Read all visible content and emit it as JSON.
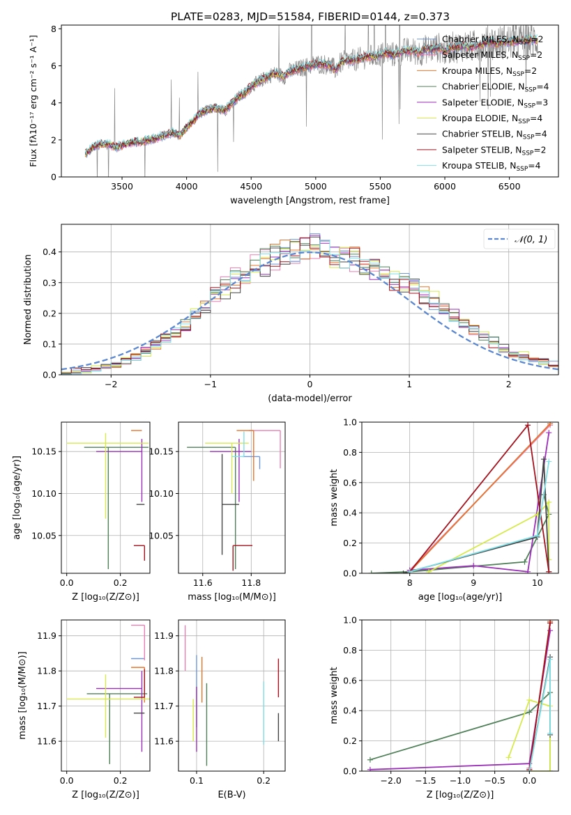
{
  "figure_title": "PLATE=0283, MJD=51584, FIBERID=0144, z=0.373",
  "models": [
    {
      "name": "Chabrier MILES",
      "nssp": "2",
      "color": "#6e95d6"
    },
    {
      "name": "Salpeter MILES",
      "nssp": "2",
      "color": "#e87fb3"
    },
    {
      "name": "Kroupa MILES",
      "nssp": "2",
      "color": "#e8742b"
    },
    {
      "name": "Chabrier ELODIE",
      "nssp": "4",
      "color": "#4f8058"
    },
    {
      "name": "Salpeter ELODIE",
      "nssp": "3",
      "color": "#9a2db7"
    },
    {
      "name": "Kroupa ELODIE",
      "nssp": "4",
      "color": "#d6ea4c"
    },
    {
      "name": "Chabrier STELIB",
      "nssp": "4",
      "color": "#444444"
    },
    {
      "name": "Salpeter STELIB",
      "nssp": "2",
      "color": "#a3121c"
    },
    {
      "name": "Kroupa STELIB",
      "nssp": "4",
      "color": "#7fdfe6"
    }
  ],
  "chart_data": [
    {
      "id": "spectrum",
      "type": "line",
      "xlabel": "wavelength [Angstrom, rest frame]",
      "ylabel": "Flux [fλ10⁻¹⁷ erg cm⁻² s⁻¹ A⁻¹]",
      "xlim": [
        3030,
        6880
      ],
      "ylim": [
        0,
        8.2
      ],
      "xticks": [
        3500,
        4000,
        4500,
        5000,
        5500,
        6000,
        6500
      ],
      "yticks": [
        0,
        2,
        4,
        6,
        8
      ],
      "continuum": {
        "x": [
          3215,
          3240,
          3300,
          3350,
          3400,
          3450,
          3500,
          3550,
          3600,
          3650,
          3700,
          3750,
          3800,
          3850,
          3900,
          3950,
          4000,
          4050,
          4100,
          4150,
          4200,
          4250,
          4300,
          4350,
          4400,
          4450,
          4500,
          4550,
          4600,
          4650,
          4700,
          4750,
          4800,
          4850,
          4900,
          4950,
          5000,
          5050,
          5100,
          5150,
          5200,
          5250,
          5300,
          5350,
          5400,
          5450,
          5500,
          5550,
          5600,
          5650,
          5700,
          5750,
          5800,
          5850,
          5900,
          5950,
          6000,
          6050,
          6100,
          6150,
          6200,
          6250,
          6300,
          6350,
          6400,
          6450,
          6500,
          6550,
          6600,
          6650,
          6700
        ],
        "y": [
          1.2,
          1.4,
          1.7,
          1.8,
          1.75,
          1.6,
          1.7,
          1.8,
          1.9,
          1.9,
          2.0,
          2.05,
          2.2,
          2.3,
          2.4,
          2.2,
          2.7,
          3.0,
          3.4,
          3.6,
          3.7,
          3.7,
          3.6,
          4.0,
          4.3,
          4.5,
          4.9,
          5.1,
          5.3,
          5.5,
          5.6,
          5.4,
          5.7,
          5.8,
          5.9,
          6.0,
          6.1,
          6.1,
          6.05,
          5.8,
          6.2,
          6.3,
          6.3,
          6.4,
          6.5,
          6.5,
          6.6,
          6.7,
          6.6,
          6.7,
          6.8,
          6.8,
          6.7,
          6.9,
          6.9,
          7.0,
          6.8,
          7.0,
          7.0,
          7.1,
          7.0,
          7.1,
          7.2,
          7.3,
          7.2,
          7.3,
          7.3,
          7.3,
          7.4,
          7.4,
          7.4
        ]
      }
    },
    {
      "id": "residuals",
      "type": "histogram",
      "xlabel": "(data-model)/error",
      "ylabel": "Normed distribution",
      "xlim": [
        -2.5,
        2.5
      ],
      "ylim": [
        0,
        0.49
      ],
      "xticks": [
        -2,
        -1,
        0,
        1,
        2
      ],
      "yticks": [
        0.0,
        0.1,
        0.2,
        0.3,
        0.4
      ],
      "bin_edges": [
        -2.5,
        -2.4,
        -2.3,
        -2.2,
        -2.1,
        -2.0,
        -1.9,
        -1.8,
        -1.7,
        -1.6,
        -1.5,
        -1.4,
        -1.3,
        -1.2,
        -1.1,
        -1.0,
        -0.9,
        -0.8,
        -0.7,
        -0.6,
        -0.5,
        -0.4,
        -0.3,
        -0.2,
        -0.1,
        0.0,
        0.1,
        0.2,
        0.3,
        0.4,
        0.5,
        0.6,
        0.7,
        0.8,
        0.9,
        1.0,
        1.1,
        1.2,
        1.3,
        1.4,
        1.5,
        1.6,
        1.7,
        1.8,
        1.9,
        2.0,
        2.1,
        2.2,
        2.3,
        2.4,
        2.5
      ],
      "envelope": [
        0.01,
        0.012,
        0.015,
        0.02,
        0.025,
        0.035,
        0.045,
        0.06,
        0.075,
        0.095,
        0.115,
        0.14,
        0.165,
        0.195,
        0.225,
        0.255,
        0.285,
        0.31,
        0.335,
        0.355,
        0.37,
        0.385,
        0.395,
        0.405,
        0.41,
        0.412,
        0.41,
        0.4,
        0.39,
        0.375,
        0.36,
        0.345,
        0.33,
        0.315,
        0.3,
        0.28,
        0.26,
        0.24,
        0.215,
        0.19,
        0.165,
        0.145,
        0.125,
        0.105,
        0.085,
        0.07,
        0.06,
        0.05,
        0.042,
        0.035
      ],
      "gaussian_label": "𝒩(0, 1)",
      "gaussian_color": "#5b87d0"
    },
    {
      "id": "age_vs_Z",
      "type": "errorbar",
      "xlabel": "Z [log₁₀(Z/Z⊙)]",
      "ylabel": "age  [log₁₀(age/yr)]",
      "xlim": [
        -0.02,
        0.31
      ],
      "ylim": [
        10.005,
        10.185
      ],
      "xticks": [
        0.0,
        0.2
      ],
      "yticks": [
        10.05,
        10.1,
        10.15
      ],
      "points": [
        {
          "m": 0,
          "x": 0.29,
          "xerr": [
            0.0,
            0.0
          ],
          "y": 10.144,
          "yerr": [
            0.0,
            0.0
          ]
        },
        {
          "m": 1,
          "x": 0.28,
          "xerr": [
            0.0,
            0.0
          ],
          "y": 10.175,
          "yerr": [
            0.0,
            0.0
          ]
        },
        {
          "m": 2,
          "x": 0.28,
          "xerr": [
            0.04,
            0.0
          ],
          "y": 10.175,
          "yerr": [
            0.0,
            0.0
          ]
        },
        {
          "m": 3,
          "x": 0.155,
          "xerr": [
            0.09,
            0.15
          ],
          "y": 10.155,
          "yerr": [
            0.145,
            0.0
          ]
        },
        {
          "m": 4,
          "x": 0.28,
          "xerr": [
            0.17,
            0.0
          ],
          "y": 10.15,
          "yerr": [
            0.06,
            0.015
          ]
        },
        {
          "m": 5,
          "x": 0.145,
          "xerr": [
            0.145,
            0.16
          ],
          "y": 10.16,
          "yerr": [
            0.09,
            0.012
          ]
        },
        {
          "m": 6,
          "x": 0.29,
          "xerr": [
            0.03,
            0.0
          ],
          "y": 10.087,
          "yerr": [
            0.0,
            0.0
          ]
        },
        {
          "m": 7,
          "x": 0.29,
          "xerr": [
            0.04,
            0.0
          ],
          "y": 10.038,
          "yerr": [
            0.018,
            0.0
          ]
        },
        {
          "m": 8,
          "x": 0.29,
          "xerr": [
            0.0,
            0.0
          ],
          "y": 10.144,
          "yerr": [
            0.0,
            0.0
          ]
        }
      ]
    },
    {
      "id": "age_vs_mass",
      "type": "errorbar",
      "xlabel": "mass [log₁₀(M/M⊙)]",
      "ylabel": "",
      "xlim": [
        11.5,
        11.94
      ],
      "ylim": [
        10.005,
        10.185
      ],
      "xticks": [
        11.6,
        11.8
      ],
      "yticks": [
        10.05,
        10.1,
        10.15
      ],
      "points": [
        {
          "m": 0,
          "x": 11.835,
          "xerr": [
            0.07,
            0.0
          ],
          "y": 10.144,
          "yerr": [
            0.015,
            0.0
          ]
        },
        {
          "m": 1,
          "x": 11.92,
          "xerr": [
            0.13,
            0.0
          ],
          "y": 10.175,
          "yerr": [
            0.045,
            0.0
          ]
        },
        {
          "m": 2,
          "x": 11.81,
          "xerr": [
            0.07,
            0.0
          ],
          "y": 10.175,
          "yerr": [
            0.06,
            0.0
          ]
        },
        {
          "m": 3,
          "x": 11.735,
          "xerr": [
            0.2,
            0.0
          ],
          "y": 10.155,
          "yerr": [
            0.145,
            0.0
          ]
        },
        {
          "m": 4,
          "x": 11.75,
          "xerr": [
            0.12,
            0.05
          ],
          "y": 10.15,
          "yerr": [
            0.06,
            0.015
          ]
        },
        {
          "m": 5,
          "x": 11.72,
          "xerr": [
            0.11,
            0.07
          ],
          "y": 10.16,
          "yerr": [
            0.06,
            0.0
          ]
        },
        {
          "m": 6,
          "x": 11.68,
          "xerr": [
            0.0,
            0.07
          ],
          "y": 10.087,
          "yerr": [
            0.06,
            0.06
          ]
        },
        {
          "m": 7,
          "x": 11.725,
          "xerr": [
            0.0,
            0.08
          ],
          "y": 10.038,
          "yerr": [
            0.03,
            0.0
          ]
        },
        {
          "m": 8,
          "x": 11.77,
          "xerr": [
            0.05,
            0.0
          ],
          "y": 10.144,
          "yerr": [
            0.0,
            0.03
          ]
        }
      ]
    },
    {
      "id": "weight_vs_age",
      "type": "line",
      "xlabel": "age  [log₁₀(age/yr)]",
      "ylabel": "mass weight",
      "xlim": [
        7.25,
        10.33
      ],
      "ylim": [
        0.0,
        1.0
      ],
      "xticks": [
        8,
        9,
        10
      ],
      "yticks": [
        0.0,
        0.2,
        0.4,
        0.6,
        0.8,
        1.0
      ],
      "series": [
        {
          "m": 0,
          "x": [
            8.0,
            10.2
          ],
          "y": [
            0.01,
            0.99
          ]
        },
        {
          "m": 1,
          "x": [
            8.0,
            10.2
          ],
          "y": [
            0.02,
            0.98
          ]
        },
        {
          "m": 2,
          "x": [
            8.0,
            10.2
          ],
          "y": [
            0.01,
            0.99
          ]
        },
        {
          "m": 3,
          "x": [
            7.4,
            8.0,
            9.8,
            10.18,
            10.1
          ],
          "y": [
            0.0,
            0.01,
            0.075,
            0.39,
            0.52
          ]
        },
        {
          "m": 4,
          "x": [
            8.0,
            9.0,
            9.85,
            10.18
          ],
          "y": [
            0.02,
            0.05,
            0.01,
            0.93
          ]
        },
        {
          "m": 5,
          "x": [
            8.3,
            10.0,
            10.18,
            10.18
          ],
          "y": [
            0.01,
            0.39,
            0.47,
            0.09
          ]
        },
        {
          "m": 6,
          "x": [
            7.9,
            10.0,
            10.1,
            10.18
          ],
          "y": [
            0.0,
            0.24,
            0.755,
            0.01
          ]
        },
        {
          "m": 7,
          "x": [
            8.0,
            9.85,
            10.18
          ],
          "y": [
            0.01,
            0.98,
            0.01
          ]
        },
        {
          "m": 8,
          "x": [
            8.0,
            10.0,
            10.18
          ],
          "y": [
            0.01,
            0.25,
            0.74
          ]
        }
      ]
    },
    {
      "id": "mass_vs_Z",
      "type": "errorbar",
      "xlabel": "Z [log₁₀(Z/Z⊙)]",
      "ylabel": "mass [log₁₀(M/M⊙)]",
      "xlim": [
        -0.02,
        0.31
      ],
      "ylim": [
        11.515,
        11.945
      ],
      "xticks": [
        0.0,
        0.2
      ],
      "yticks": [
        11.6,
        11.7,
        11.8,
        11.9
      ],
      "points": [
        {
          "m": 0,
          "x": 0.29,
          "xerr": [
            0.05,
            0.0
          ],
          "y": 11.835,
          "yerr": [
            0.0,
            0.0
          ]
        },
        {
          "m": 1,
          "x": 0.29,
          "xerr": [
            0.05,
            0.0
          ],
          "y": 11.93,
          "yerr": [
            0.1,
            0.0
          ]
        },
        {
          "m": 2,
          "x": 0.29,
          "xerr": [
            0.05,
            0.0
          ],
          "y": 11.81,
          "yerr": [
            0.1,
            0.0
          ]
        },
        {
          "m": 3,
          "x": 0.16,
          "xerr": [
            0.085,
            0.14
          ],
          "y": 11.735,
          "yerr": [
            0.2,
            0.0
          ]
        },
        {
          "m": 4,
          "x": 0.28,
          "xerr": [
            0.17,
            0.0
          ],
          "y": 11.75,
          "yerr": [
            0.18,
            0.05
          ]
        },
        {
          "m": 5,
          "x": 0.145,
          "xerr": [
            0.145,
            0.165
          ],
          "y": 11.72,
          "yerr": [
            0.11,
            0.07
          ]
        },
        {
          "m": 6,
          "x": 0.29,
          "xerr": [
            0.04,
            0.0
          ],
          "y": 11.68,
          "yerr": [
            0.0,
            0.0
          ]
        },
        {
          "m": 7,
          "x": 0.29,
          "xerr": [
            0.04,
            0.0
          ],
          "y": 11.725,
          "yerr": [
            0.0,
            0.08
          ]
        },
        {
          "m": 8,
          "x": 0.29,
          "xerr": [
            0.0,
            0.0
          ],
          "y": 11.77,
          "yerr": [
            0.0,
            0.0
          ]
        }
      ]
    },
    {
      "id": "mass_vs_ebv",
      "type": "errorbar",
      "xlabel": "E(B-V)",
      "ylabel": "",
      "xlim": [
        0.073,
        0.232
      ],
      "ylim": [
        11.515,
        11.945
      ],
      "xticks": [
        0.1,
        0.2
      ],
      "yticks": [
        11.6,
        11.7,
        11.8,
        11.9
      ],
      "points": [
        {
          "m": 0,
          "x": 0.1,
          "xerr": [
            0.0,
            0.0
          ],
          "y": 11.74,
          "yerr": [
            0.1,
            0.105
          ]
        },
        {
          "m": 1,
          "x": 0.083,
          "xerr": [
            0.0,
            0.0
          ],
          "y": 11.93,
          "yerr": [
            0.13,
            0.0
          ]
        },
        {
          "m": 2,
          "x": 0.108,
          "xerr": [
            0.0,
            0.0
          ],
          "y": 11.81,
          "yerr": [
            0.1,
            0.03
          ]
        },
        {
          "m": 3,
          "x": 0.115,
          "xerr": [
            0.0,
            0.0
          ],
          "y": 11.765,
          "yerr": [
            0.235,
            0.0
          ]
        },
        {
          "m": 4,
          "x": 0.1,
          "xerr": [
            0.0,
            0.0
          ],
          "y": 11.755,
          "yerr": [
            0.185,
            0.0
          ]
        },
        {
          "m": 5,
          "x": 0.095,
          "xerr": [
            0.0,
            0.0
          ],
          "y": 11.72,
          "yerr": [
            0.12,
            0.0
          ]
        },
        {
          "m": 6,
          "x": 0.222,
          "xerr": [
            0.0,
            0.0
          ],
          "y": 11.68,
          "yerr": [
            0.08,
            0.0
          ]
        },
        {
          "m": 7,
          "x": 0.222,
          "xerr": [
            0.0,
            0.0
          ],
          "y": 11.725,
          "yerr": [
            0.0,
            0.11
          ]
        },
        {
          "m": 8,
          "x": 0.2,
          "xerr": [
            0.0,
            0.0
          ],
          "y": 11.69,
          "yerr": [
            0.1,
            0.08
          ]
        }
      ]
    },
    {
      "id": "weight_vs_Z",
      "type": "line",
      "xlabel": "Z [log₁₀(Z/Z⊙)]",
      "ylabel": "mass weight",
      "xlim": [
        -2.42,
        0.42
      ],
      "ylim": [
        0.0,
        1.0
      ],
      "xticks": [
        -2.0,
        -1.5,
        -1.0,
        -0.5,
        0.0,
        0.5
      ],
      "yticks": [
        0.0,
        0.2,
        0.4,
        0.6,
        0.8,
        1.0
      ],
      "series": [
        {
          "m": 0,
          "x": [
            0.0,
            0.3
          ],
          "y": [
            0.01,
            0.99
          ]
        },
        {
          "m": 1,
          "x": [
            0.0,
            0.3
          ],
          "y": [
            0.02,
            0.98
          ]
        },
        {
          "m": 2,
          "x": [
            0.0,
            0.3
          ],
          "y": [
            0.01,
            0.99
          ]
        },
        {
          "m": 3,
          "x": [
            -2.3,
            0.0,
            0.3,
            0.3
          ],
          "y": [
            0.075,
            0.39,
            0.52,
            0.0
          ]
        },
        {
          "m": 4,
          "x": [
            -2.3,
            0.0,
            0.3
          ],
          "y": [
            0.01,
            0.05,
            0.93
          ]
        },
        {
          "m": 5,
          "x": [
            -0.3,
            0.0,
            0.3,
            0.3,
            0.0
          ],
          "y": [
            0.09,
            0.47,
            0.43,
            0.0,
            0.0
          ]
        },
        {
          "m": 6,
          "x": [
            0.0,
            0.3,
            0.3
          ],
          "y": [
            0.0,
            0.755,
            0.24
          ]
        },
        {
          "m": 7,
          "x": [
            0.0,
            0.3
          ],
          "y": [
            0.01,
            0.98
          ]
        },
        {
          "m": 8,
          "x": [
            0.0,
            0.3,
            0.3
          ],
          "y": [
            0.0,
            0.74,
            0.25
          ]
        }
      ]
    }
  ]
}
